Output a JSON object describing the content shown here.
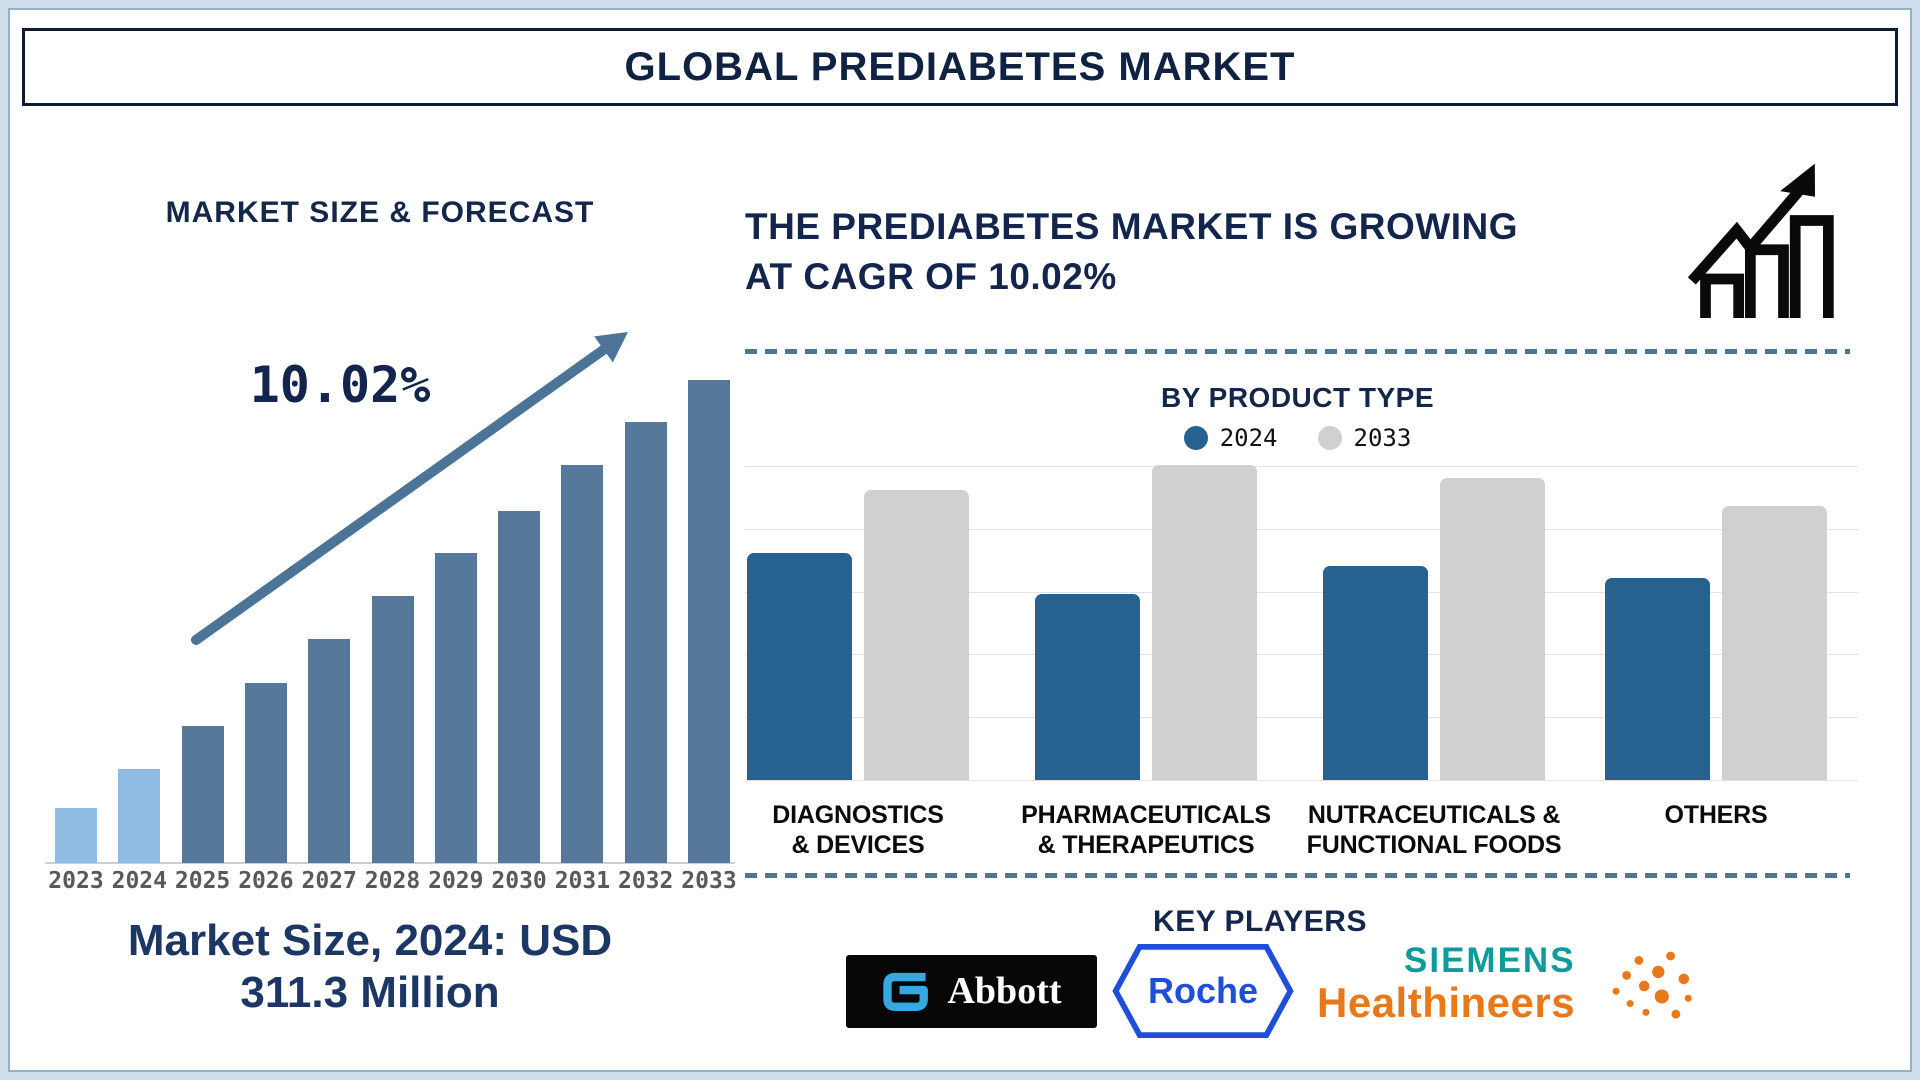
{
  "page": {
    "title": "GLOBAL PREDIABETES MARKET"
  },
  "left_panel": {
    "title": "MARKET SIZE & FORECAST",
    "cagr_label": "10.02%",
    "caption_line1": "Market Size, 2024: USD",
    "caption_line2": "311.3 Million"
  },
  "right_panel": {
    "heading_line1": "THE PREDIABETES MARKET IS GROWING",
    "heading_line2": "AT CAGR OF 10.02%",
    "chart_title": "BY PRODUCT TYPE",
    "key_players_title": "KEY PLAYERS",
    "logos": {
      "abbott": "Abbott",
      "roche": "Roche",
      "siemens_line1": "SIEMENS",
      "siemens_line2": "Healthineers"
    }
  },
  "colors": {
    "navy_text": "#13254C",
    "steel_arrow": "#4C7496",
    "left_bar_highlight": "#90BCE4",
    "left_bar_default": "#56789A",
    "right_bar_2024": "#26618F",
    "right_bar_2033": "#D0D0D0",
    "year_label_gray": "#58595B",
    "abbott_blue": "#36A9E1",
    "roche_blue": "#1F4ED8",
    "siemens_teal": "#0F9B9B",
    "healthineers_orange": "#E8791A"
  },
  "chart_data": [
    {
      "type": "bar",
      "title": "MARKET SIZE & FORECAST",
      "categories": [
        "2023",
        "2024",
        "2025",
        "2026",
        "2027",
        "2028",
        "2029",
        "2030",
        "2031",
        "2032",
        "2033"
      ],
      "values_relative_pct": [
        11.4,
        19.5,
        28.4,
        37.3,
        46.4,
        55.3,
        64.2,
        72.9,
        82.4,
        91.3,
        100
      ],
      "highlight_categories": [
        "2023",
        "2024"
      ],
      "bar_color_highlight": "#90BCE4",
      "bar_color_default": "#56789A",
      "annotation": "10.02%",
      "known_point": {
        "year": "2024",
        "value": "USD 311.3 Million"
      },
      "ylabel": "",
      "xlabel": "",
      "note": "no y-axis shown; values are relative bar heights (max bar = 100)",
      "grid": false,
      "legend_position": "none"
    },
    {
      "type": "bar",
      "title": "BY PRODUCT TYPE",
      "categories": [
        [
          "DIAGNOSTICS",
          "& DEVICES"
        ],
        [
          "PHARMACEUTICALS",
          "& THERAPEUTICS"
        ],
        [
          "NUTRACEUTICALS &",
          "FUNCTIONAL FOODS"
        ],
        [
          "OTHERS"
        ]
      ],
      "series": [
        {
          "name": "2024",
          "color": "#26618F",
          "values_relative_pct": [
            72,
            59,
            68,
            64
          ]
        },
        {
          "name": "2033",
          "color": "#D0D0D0",
          "values_relative_pct": [
            92,
            100,
            96,
            87
          ]
        }
      ],
      "ylim_relative": [
        0,
        104
      ],
      "note": "no y-axis shown; values are relative bar heights (tallest 2033 bar = 100)",
      "grid": true,
      "legend_position": "top"
    }
  ]
}
